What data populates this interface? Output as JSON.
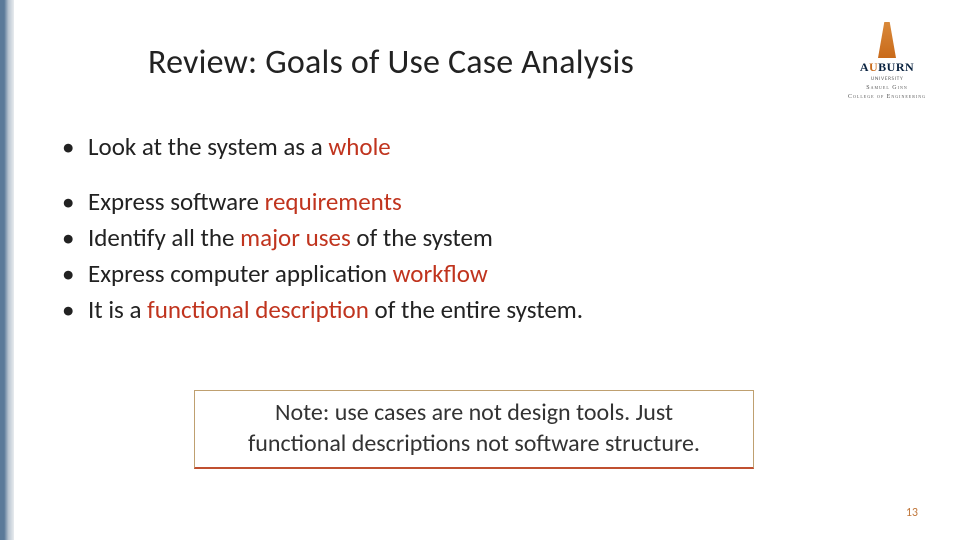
{
  "colors": {
    "emphasis": "#c0341e",
    "pagenum": "#c0763a",
    "stripe_from": "#5b7a99",
    "note_border": "#bfa070"
  },
  "title": {
    "prefix": "Review:",
    "rest": " Goals of Use Case Analysis"
  },
  "logo": {
    "word_pre": "A",
    "word_u": "U",
    "word_post": "BURN",
    "sub1": "UNIVERSITY",
    "sub2": "Samuel Ginn",
    "sub3": "College of Engineering"
  },
  "bullets": {
    "b1_pre": "Look at the system as a ",
    "b1_emph": "whole",
    "b2_pre": "Express software ",
    "b2_emph": "requirements",
    "b3_pre": "Identify all the ",
    "b3_emph": "major uses ",
    "b3_post": "of the system",
    "b4_pre": "Express computer application ",
    "b4_emph": "workflow",
    "b5_pre": "It is a ",
    "b5_emph": "functional description ",
    "b5_post": "of the entire system."
  },
  "note": {
    "line1": "Note: use cases are not design tools. Just",
    "line2": "functional descriptions not software structure."
  },
  "page_number": "13"
}
